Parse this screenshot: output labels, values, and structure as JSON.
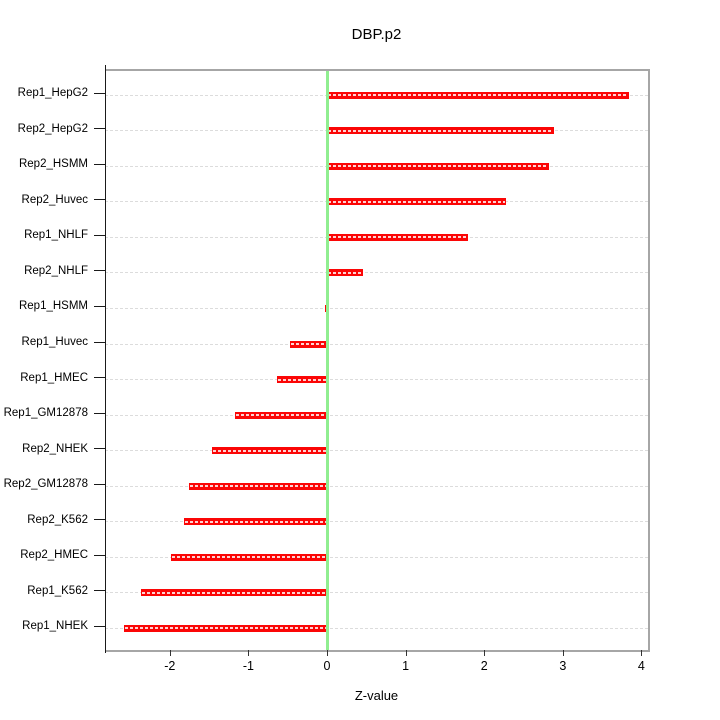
{
  "chart_data": {
    "type": "bar",
    "orientation": "horizontal",
    "title": "DBP.p2",
    "xlabel": "Z-value",
    "ylabel": "",
    "categories": [
      "Rep1_HepG2",
      "Rep2_HepG2",
      "Rep2_HSMM",
      "Rep2_Huvec",
      "Rep1_NHLF",
      "Rep2_NHLF",
      "Rep1_HSMM",
      "Rep1_Huvec",
      "Rep1_HMEC",
      "Rep1_GM12878",
      "Rep2_NHEK",
      "Rep2_GM12878",
      "Rep2_K562",
      "Rep2_HMEC",
      "Rep1_K562",
      "Rep1_NHEK"
    ],
    "values": [
      3.84,
      2.89,
      2.83,
      2.28,
      1.8,
      0.46,
      -0.02,
      -0.47,
      -0.64,
      -1.17,
      -1.46,
      -1.75,
      -1.82,
      -1.99,
      -2.37,
      -2.58
    ],
    "x_ticks": [
      -2,
      -1,
      0,
      1,
      2,
      3,
      4
    ],
    "xlim": [
      -2.82,
      4.09
    ],
    "grid": "horizontal dashed line per category",
    "legend": "none",
    "bar_color": "#ff0000",
    "bar_dash_color": "#ffffff",
    "zero_line_color": "#90ee90",
    "grid_color": "#dcdcdc",
    "box_color": "#a6a6a6"
  }
}
